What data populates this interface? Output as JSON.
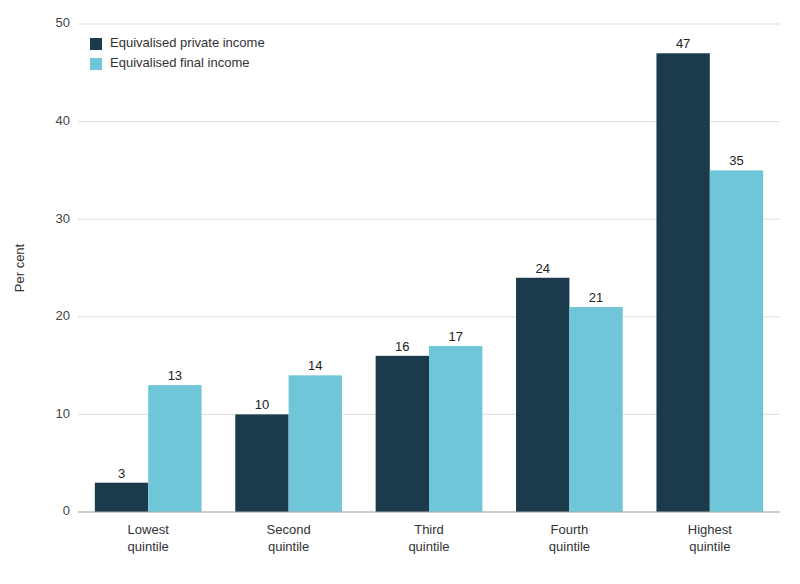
{
  "chart_data": {
    "type": "bar",
    "categories": [
      "Lowest\nquintile",
      "Second\nquintile",
      "Third\nquintile",
      "Fourth\nquintile",
      "Highest\nquintile"
    ],
    "series": [
      {
        "name": "Equivalised private income",
        "color": "#1b3a4b",
        "values": [
          3,
          10,
          16,
          24,
          47
        ]
      },
      {
        "name": "Equivalised final income",
        "color": "#6ec6d8",
        "values": [
          13,
          14,
          17,
          21,
          35
        ]
      }
    ],
    "ylabel": "Per cent",
    "ylim": [
      0,
      50
    ],
    "yticks": [
      0,
      10,
      20,
      30,
      40,
      50
    ],
    "grid": true,
    "legend": "upper left",
    "data_labels": true
  }
}
